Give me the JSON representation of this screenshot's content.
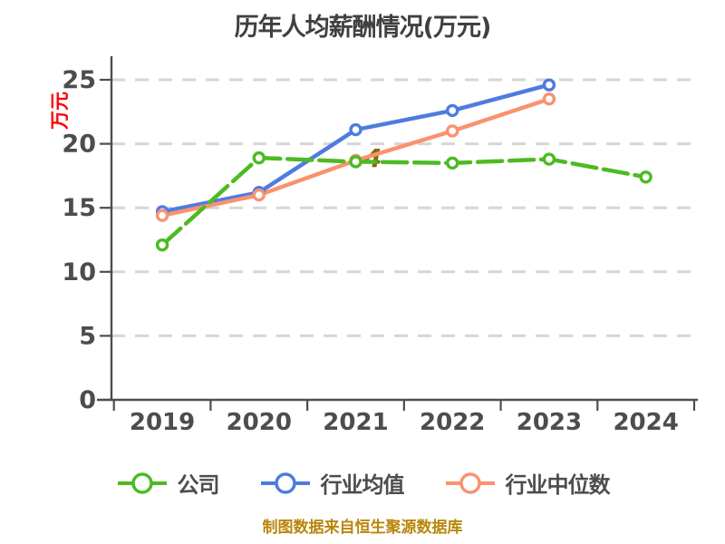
{
  "title": "历年人均薪酬情况(万元)",
  "footer": {
    "text": "制图数据来自恒生聚源数据库",
    "color": "#b8860b"
  },
  "artifact": {
    "text": "4",
    "color": "#7d6e06"
  },
  "axes": {
    "y_label": "万元",
    "y_label_color": "#fe0000",
    "y_ticks": [
      0,
      5,
      10,
      15,
      20,
      25
    ],
    "x_ticks": [
      "2019",
      "2020",
      "2021",
      "2022",
      "2023",
      "2024"
    ],
    "axis_color": "#4d4d4d",
    "tick_label_color": "#4d4d4d",
    "grid_color": "#d6d6d6"
  },
  "chart_data": {
    "type": "line",
    "title": "历年人均薪酬情况(万元)",
    "xlabel": "",
    "ylabel": "万元",
    "ylim": [
      0,
      25
    ],
    "grid": "horizontal-dashed",
    "legend_position": "bottom",
    "categories": [
      "2019",
      "2020",
      "2021",
      "2022",
      "2023",
      "2024"
    ],
    "series": [
      {
        "name": "公司",
        "color": "#4cbb22",
        "style": "dashed",
        "values": [
          12.1,
          18.9,
          18.6,
          18.5,
          18.8,
          17.4
        ]
      },
      {
        "name": "行业均值",
        "color": "#4d7ce0",
        "style": "solid",
        "values": [
          14.7,
          16.2,
          21.1,
          22.6,
          24.6,
          null
        ]
      },
      {
        "name": "行业中位数",
        "color": "#fa9270",
        "style": "solid",
        "values": [
          14.4,
          16.0,
          18.7,
          21.0,
          23.5,
          null
        ]
      }
    ]
  }
}
